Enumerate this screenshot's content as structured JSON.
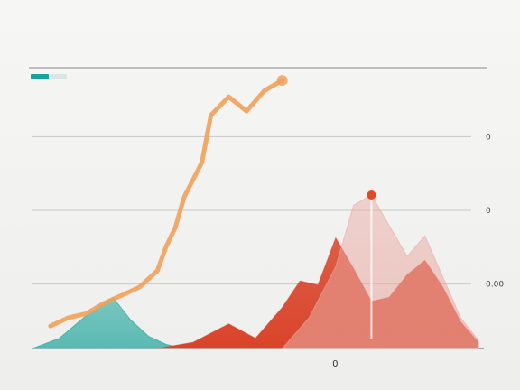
{
  "chart_data": {
    "type": "area",
    "title": "",
    "corner_label": "",
    "annotation": "",
    "x_ticks": [
      "",
      "",
      "",
      "",
      "0",
      "",
      ""
    ],
    "y_ticks_left": [
      {
        "value": 0,
        "label": ""
      },
      {
        "value": 35,
        "label": ""
      },
      {
        "value": 75,
        "label": ""
      }
    ],
    "y_ticks_right": [
      {
        "value": 35,
        "label": "0.00"
      },
      {
        "value": 75,
        "label": "0"
      },
      {
        "value": 115,
        "label": "0"
      }
    ],
    "ylim": [
      0,
      150
    ],
    "xlim": [
      0,
      100
    ],
    "grid": true,
    "series": [
      {
        "color": "#1aa39a",
        "fill_opacity": 0.55,
        "x": [
          0,
          6,
          12,
          18,
          22,
          26,
          30,
          34
        ],
        "values": [
          0,
          10,
          32,
          50,
          28,
          12,
          4,
          0
        ]
      },
      {
        "color": "#d9442a",
        "fill_opacity": 0.85,
        "x": [
          28,
          36,
          44,
          50,
          56,
          60,
          64,
          68,
          72,
          76,
          80,
          84,
          88,
          92,
          96,
          100
        ],
        "values": [
          0,
          6,
          24,
          10,
          40,
          66,
          62,
          108,
          78,
          46,
          50,
          72,
          86,
          60,
          26,
          6
        ]
      },
      {
        "color": "#e9a8a0",
        "fill_opacity": 0.45,
        "x": [
          56,
          62,
          68,
          72,
          76,
          80,
          84,
          88,
          92,
          96,
          100
        ],
        "values": [
          0,
          30,
          80,
          140,
          150,
          120,
          90,
          110,
          70,
          30,
          8
        ]
      },
      {
        "color": "#f0a15a",
        "line": true,
        "x": [
          4,
          8,
          12,
          16,
          20,
          24,
          28,
          30,
          32,
          34,
          38,
          40,
          44,
          48,
          52,
          56
        ],
        "values": [
          22,
          30,
          34,
          44,
          52,
          60,
          76,
          100,
          118,
          148,
          182,
          228,
          246,
          232,
          252,
          262
        ]
      }
    ],
    "peak_marker": {
      "x": 76,
      "value": 150,
      "color": "#e04a24"
    }
  }
}
